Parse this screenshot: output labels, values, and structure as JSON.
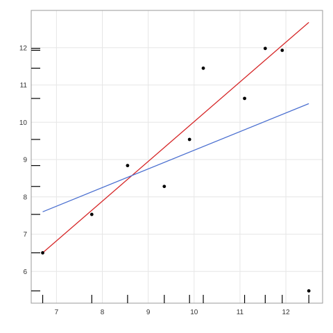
{
  "chart_data": {
    "type": "scatter",
    "title": "",
    "xlabel": "",
    "ylabel": "",
    "xlim": [
      6.45,
      12.8
    ],
    "ylim": [
      5.15,
      13.0
    ],
    "x_ticks": [
      7,
      8,
      9,
      10,
      11,
      12
    ],
    "y_ticks": [
      6,
      7,
      8,
      9,
      10,
      11,
      12
    ],
    "grid": true,
    "legend": "none",
    "points": [
      {
        "x": 6.7,
        "y": 6.5
      },
      {
        "x": 7.77,
        "y": 7.53
      },
      {
        "x": 8.55,
        "y": 8.84
      },
      {
        "x": 9.35,
        "y": 8.28
      },
      {
        "x": 9.9,
        "y": 9.54
      },
      {
        "x": 10.2,
        "y": 11.45
      },
      {
        "x": 11.1,
        "y": 10.64
      },
      {
        "x": 11.55,
        "y": 11.98
      },
      {
        "x": 11.92,
        "y": 11.93
      },
      {
        "x": 12.5,
        "y": 5.48
      }
    ],
    "x_rug": [
      6.7,
      7.77,
      8.55,
      9.35,
      9.9,
      10.2,
      11.1,
      11.55,
      11.92,
      12.5
    ],
    "y_rug": [
      5.48,
      6.5,
      7.53,
      8.28,
      8.84,
      9.54,
      10.64,
      11.45,
      11.93,
      11.98
    ],
    "lines": [
      {
        "color": "#d62728",
        "x": [
          6.7,
          12.5
        ],
        "y": [
          6.5,
          12.68
        ]
      },
      {
        "color": "#4a6fd0",
        "x": [
          6.7,
          12.5
        ],
        "y": [
          7.6,
          10.5
        ]
      }
    ],
    "colors": {
      "points": "#000000",
      "rug": "#000000"
    }
  }
}
